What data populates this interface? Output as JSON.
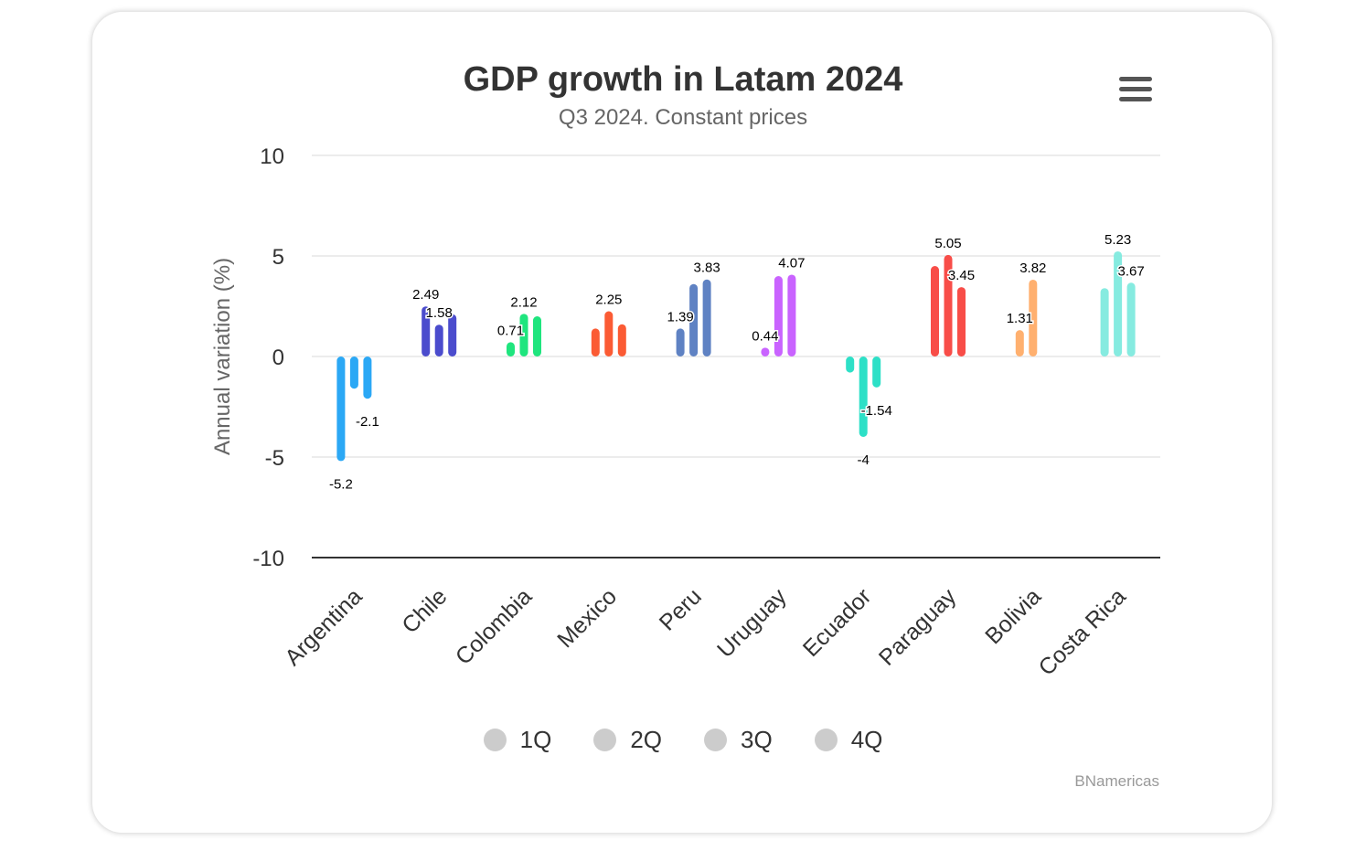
{
  "chart_data": {
    "type": "bar",
    "title": "GDP growth in Latam 2024",
    "subtitle": "Q3 2024. Constant prices",
    "ylabel": "Annual variation (%)",
    "xlabel": "",
    "ylim": [
      -10,
      10
    ],
    "yticks": [
      10,
      5,
      0,
      -5,
      -10
    ],
    "categories": [
      "Argentina",
      "Chile",
      "Colombia",
      "Mexico",
      "Peru",
      "Uruguay",
      "Ecuador",
      "Paraguay",
      "Bolivia",
      "Costa Rica"
    ],
    "colors": [
      "#2ba8f5",
      "#4b4ccd",
      "#1fe57e",
      "#fb5b34",
      "#5f82c3",
      "#c963ff",
      "#2de0c7",
      "#f84d48",
      "#ffb06f",
      "#86ebe0"
    ],
    "series": [
      {
        "name": "1Q",
        "values": [
          -5.2,
          2.49,
          0.71,
          1.39,
          1.39,
          0.44,
          -0.8,
          4.5,
          1.31,
          3.4
        ]
      },
      {
        "name": "2Q",
        "values": [
          -1.6,
          1.58,
          2.12,
          2.25,
          3.6,
          4.0,
          -4,
          5.05,
          3.82,
          5.23
        ]
      },
      {
        "name": "3Q",
        "values": [
          -2.1,
          2.1,
          2.0,
          1.6,
          3.83,
          4.07,
          -1.54,
          3.45,
          null,
          3.67
        ]
      },
      {
        "name": "4Q",
        "values": [
          null,
          null,
          null,
          null,
          null,
          null,
          null,
          null,
          null,
          null
        ]
      }
    ],
    "data_labels": [
      {
        "country": "Argentina",
        "series": "1Q",
        "text": "-5.2"
      },
      {
        "country": "Argentina",
        "series": "3Q",
        "text": "-2.1"
      },
      {
        "country": "Chile",
        "series": "1Q",
        "text": "2.49"
      },
      {
        "country": "Chile",
        "series": "2Q",
        "text": "1.58"
      },
      {
        "country": "Colombia",
        "series": "1Q",
        "text": "0.71"
      },
      {
        "country": "Colombia",
        "series": "2Q",
        "text": "2.12"
      },
      {
        "country": "Mexico",
        "series": "2Q",
        "text": "2.25"
      },
      {
        "country": "Peru",
        "series": "1Q",
        "text": "1.39"
      },
      {
        "country": "Peru",
        "series": "3Q",
        "text": "3.83"
      },
      {
        "country": "Uruguay",
        "series": "1Q",
        "text": "0.44"
      },
      {
        "country": "Uruguay",
        "series": "3Q",
        "text": "4.07"
      },
      {
        "country": "Ecuador",
        "series": "2Q",
        "text": "-4"
      },
      {
        "country": "Ecuador",
        "series": "3Q",
        "text": "-1.54"
      },
      {
        "country": "Paraguay",
        "series": "2Q",
        "text": "5.05"
      },
      {
        "country": "Paraguay",
        "series": "3Q",
        "text": "3.45"
      },
      {
        "country": "Bolivia",
        "series": "1Q",
        "text": "1.31"
      },
      {
        "country": "Bolivia",
        "series": "2Q",
        "text": "3.82"
      },
      {
        "country": "Costa Rica",
        "series": "2Q",
        "text": "5.23"
      },
      {
        "country": "Costa Rica",
        "series": "3Q",
        "text": "3.67"
      }
    ],
    "legend_position": "bottom-center"
  },
  "legend": {
    "items": [
      "1Q",
      "2Q",
      "3Q",
      "4Q"
    ],
    "inactive_color": "#cccccc"
  },
  "credits": "BNamericas",
  "menu_icon": "hamburger-menu-icon"
}
